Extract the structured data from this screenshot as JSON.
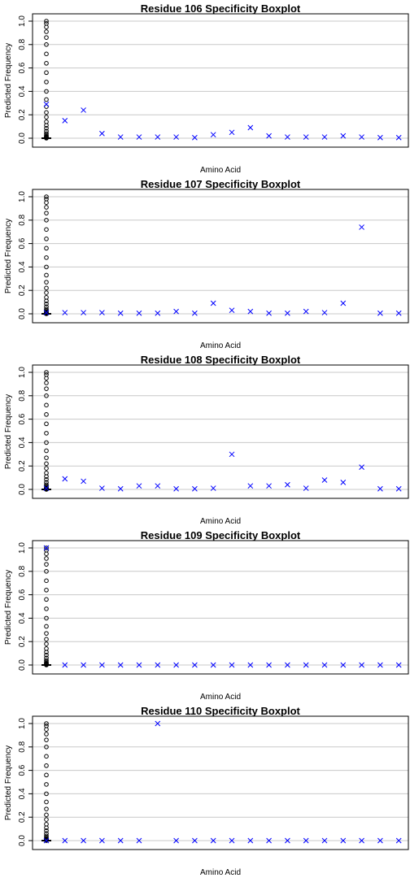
{
  "chart_data": [
    {
      "type": "boxplot",
      "title": "Residue 106 Specificity Boxplot",
      "xlabel": "Amino Acid",
      "ylabel": "Predicted Frequency",
      "ylim": [
        0,
        1
      ],
      "yticks": [
        "0.0",
        "0.2",
        "0.4",
        "0.6",
        "0.8",
        "1.0"
      ],
      "grid": true,
      "marker_color": "#0000ff",
      "box_values": [
        0,
        0.003,
        0.006,
        0.01,
        0.016,
        0.025,
        0.04,
        0.06,
        0.085,
        0.11,
        0.14,
        0.18,
        0.22,
        0.27,
        0.33,
        0.4,
        0.48,
        0.56,
        0.64,
        0.72,
        0.8,
        0.86,
        0.91,
        0.95,
        0.98,
        1.0
      ],
      "x_marks": [
        0.29,
        0.15,
        0.24,
        0.04,
        0.01,
        0.01,
        0.01,
        0.01,
        0.005,
        0.03,
        0.05,
        0.09,
        0.02,
        0.01,
        0.01,
        0.01,
        0.02,
        0.01,
        0.005,
        0.005
      ]
    },
    {
      "type": "boxplot",
      "title": "Residue 107 Specificity Boxplot",
      "xlabel": "Amino Acid",
      "ylabel": "Predicted Frequency",
      "ylim": [
        0,
        1
      ],
      "yticks": [
        "0.0",
        "0.2",
        "0.4",
        "0.6",
        "0.8",
        "1.0"
      ],
      "grid": true,
      "marker_color": "#0000ff",
      "box_values": [
        0,
        0.003,
        0.006,
        0.01,
        0.016,
        0.025,
        0.04,
        0.06,
        0.085,
        0.11,
        0.14,
        0.18,
        0.22,
        0.27,
        0.33,
        0.4,
        0.48,
        0.56,
        0.64,
        0.72,
        0.8,
        0.86,
        0.91,
        0.95,
        0.98,
        1.0
      ],
      "x_marks": [
        0.01,
        0.01,
        0.01,
        0.01,
        0.005,
        0.005,
        0.005,
        0.02,
        0.005,
        0.09,
        0.03,
        0.02,
        0.005,
        0.005,
        0.02,
        0.01,
        0.09,
        0.74,
        0.005,
        0.005
      ]
    },
    {
      "type": "boxplot",
      "title": "Residue 108 Specificity Boxplot",
      "xlabel": "Amino Acid",
      "ylabel": "Predicted Frequency",
      "ylim": [
        0,
        1
      ],
      "yticks": [
        "0.0",
        "0.2",
        "0.4",
        "0.6",
        "0.8",
        "1.0"
      ],
      "grid": true,
      "marker_color": "#0000ff",
      "box_values": [
        0,
        0.003,
        0.006,
        0.01,
        0.016,
        0.025,
        0.04,
        0.06,
        0.085,
        0.11,
        0.14,
        0.18,
        0.22,
        0.27,
        0.33,
        0.4,
        0.48,
        0.56,
        0.64,
        0.72,
        0.8,
        0.86,
        0.91,
        0.95,
        0.98,
        1.0
      ],
      "x_marks": [
        0.01,
        0.09,
        0.07,
        0.01,
        0.005,
        0.03,
        0.03,
        0.005,
        0.005,
        0.01,
        0.3,
        0.03,
        0.03,
        0.04,
        0.01,
        0.08,
        0.06,
        0.19,
        0.005,
        0.005
      ]
    },
    {
      "type": "boxplot",
      "title": "Residue 109 Specificity Boxplot",
      "xlabel": "Amino Acid",
      "ylabel": "Predicted Frequency",
      "ylim": [
        0,
        1
      ],
      "yticks": [
        "0.0",
        "0.2",
        "0.4",
        "0.6",
        "0.8",
        "1.0"
      ],
      "grid": true,
      "marker_color": "#0000ff",
      "box_values": [
        0,
        0.003,
        0.006,
        0.01,
        0.016,
        0.025,
        0.04,
        0.06,
        0.085,
        0.11,
        0.14,
        0.18,
        0.22,
        0.27,
        0.33,
        0.4,
        0.48,
        0.56,
        0.64,
        0.72,
        0.8,
        0.86,
        0.91,
        0.95,
        0.98,
        1.0
      ],
      "x_marks": [
        1.0,
        0,
        0,
        0,
        0,
        0,
        0,
        0,
        0,
        0,
        0,
        0,
        0,
        0,
        0,
        0,
        0,
        0,
        0,
        0
      ]
    },
    {
      "type": "boxplot",
      "title": "Residue 110 Specificity Boxplot",
      "xlabel": "Amino Acid",
      "ylabel": "Predicted Frequency",
      "ylim": [
        0,
        1
      ],
      "yticks": [
        "0.0",
        "0.2",
        "0.4",
        "0.6",
        "0.8",
        "1.0"
      ],
      "grid": true,
      "marker_color": "#0000ff",
      "box_values": [
        0,
        0.003,
        0.006,
        0.01,
        0.016,
        0.025,
        0.04,
        0.06,
        0.085,
        0.11,
        0.14,
        0.18,
        0.22,
        0.27,
        0.33,
        0.4,
        0.48,
        0.56,
        0.64,
        0.72,
        0.8,
        0.86,
        0.91,
        0.95,
        0.98,
        1.0
      ],
      "x_marks": [
        0,
        0,
        0,
        0,
        0,
        0,
        1.0,
        0,
        0,
        0,
        0,
        0,
        0,
        0,
        0,
        0,
        0,
        0,
        0,
        0
      ]
    }
  ]
}
